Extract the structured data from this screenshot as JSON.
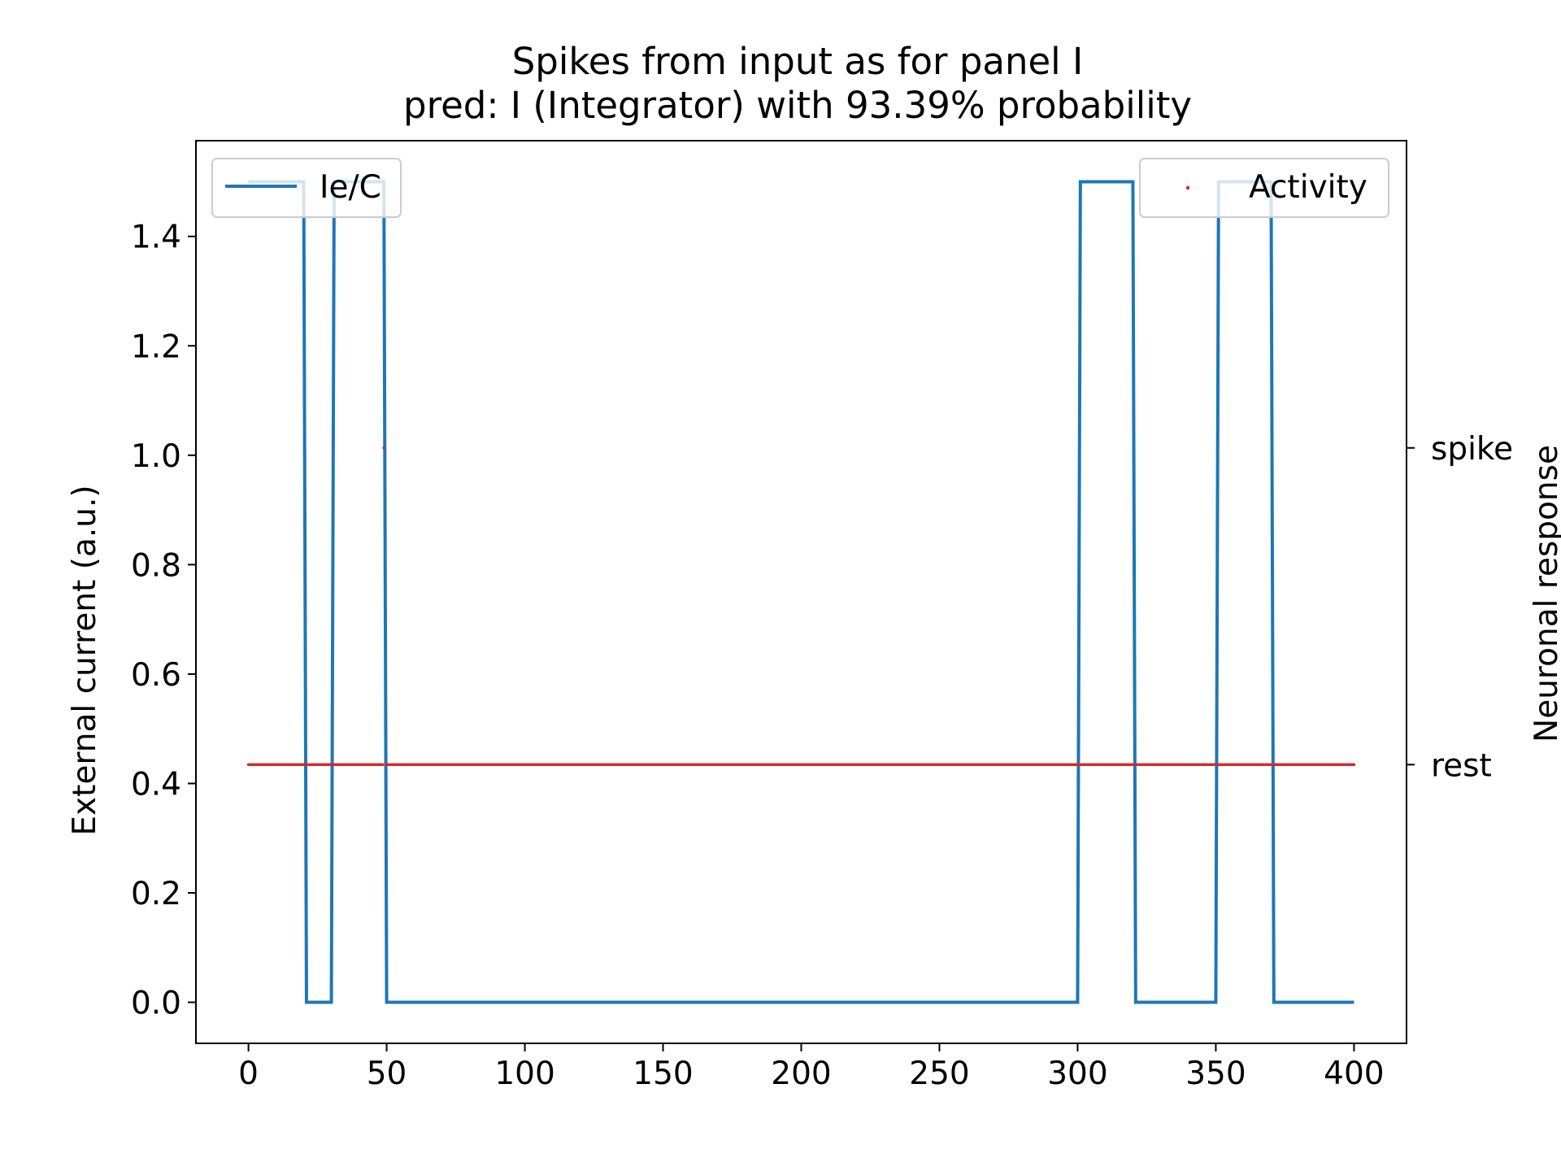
{
  "chart_data": {
    "type": "line",
    "title": "Spikes from input as for panel I",
    "subtitle": "pred: I (Integrator) with 93.39% probability",
    "xlabel": "",
    "ylabel": "External current (a.u.)",
    "ylabel_right": "Neuronal response",
    "xlim": [
      -19,
      419
    ],
    "ylim": [
      -0.075,
      1.575
    ],
    "x_ticks": [
      0,
      50,
      100,
      150,
      200,
      250,
      300,
      350,
      400
    ],
    "y_ticks": [
      0.0,
      0.2,
      0.4,
      0.6,
      0.8,
      1.0,
      1.2,
      1.4
    ],
    "y_tick_labels": [
      "0.0",
      "0.2",
      "0.4",
      "0.6",
      "0.8",
      "1.0",
      "1.2",
      "1.4"
    ],
    "right_ticks": [
      {
        "label": "spike",
        "value": 1.0
      },
      {
        "label": "rest",
        "value": 0.0
      }
    ],
    "right_ylim": [
      -0.88,
      1.97
    ],
    "grid": false,
    "series": [
      {
        "name": "Ie/C",
        "axis": "left",
        "color": "#1f77b4",
        "style": "step-line",
        "x": [
          0,
          20,
          21,
          30,
          31,
          49,
          50,
          300,
          301,
          320,
          321,
          350,
          351,
          370,
          371,
          400
        ],
        "y": [
          1.5,
          1.5,
          0.0,
          0.0,
          1.5,
          1.5,
          0.0,
          0.0,
          1.5,
          1.5,
          0.0,
          0.0,
          1.5,
          1.5,
          0.0,
          0.0
        ]
      },
      {
        "name": "Activity",
        "axis": "right",
        "color": "#d62728",
        "style": "dots",
        "rest_range": [
          0,
          400
        ],
        "rest_step": 0.5,
        "spikes": [
          49
        ]
      }
    ],
    "legends": [
      {
        "position": "upper-left",
        "entries": [
          "Ie/C"
        ]
      },
      {
        "position": "upper-right",
        "entries": [
          "Activity"
        ]
      }
    ]
  }
}
